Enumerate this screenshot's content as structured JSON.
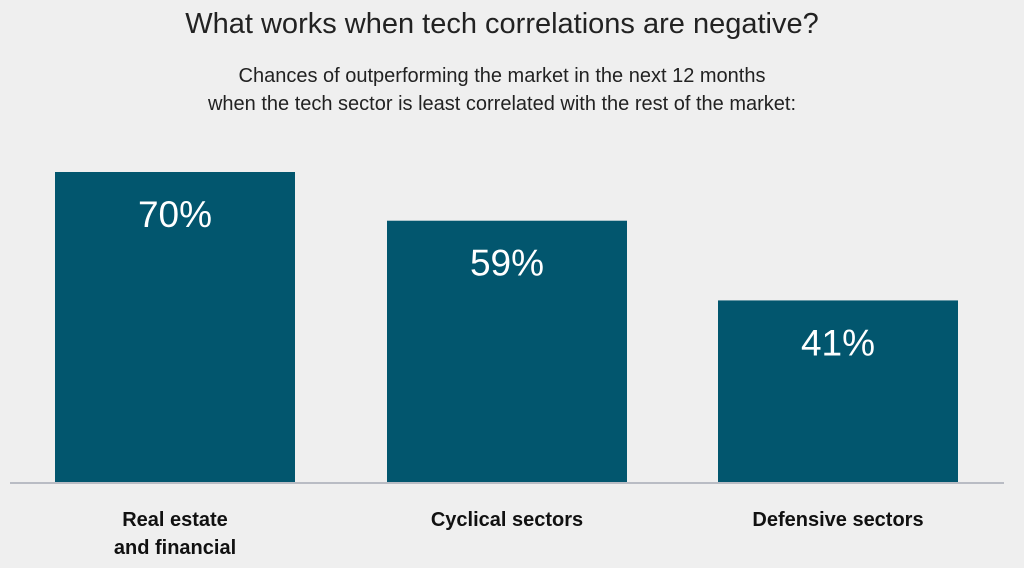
{
  "chart_data": {
    "type": "bar",
    "title": "What works when tech correlations are negative?",
    "subtitle_lines": [
      "Chances of outperforming the market in the next 12 months",
      "when the tech sector is least correlated with the rest of the market:"
    ],
    "categories": [
      "Real estate and financial",
      "Cyclical sectors",
      "Defensive sectors"
    ],
    "category_label_lines": [
      [
        "Real estate",
        "and financial"
      ],
      [
        "Cyclical sectors"
      ],
      [
        "Defensive sectors"
      ]
    ],
    "values": [
      70,
      59,
      41
    ],
    "value_labels": [
      "70%",
      "59%",
      "41%"
    ],
    "ylim": [
      0,
      70
    ],
    "grid": false,
    "xlabel": "",
    "ylabel": ""
  },
  "colors": {
    "bar": "#02566e",
    "baseline": "#b9bcc4",
    "background": "#efefef",
    "value_text": "#ffffff"
  }
}
